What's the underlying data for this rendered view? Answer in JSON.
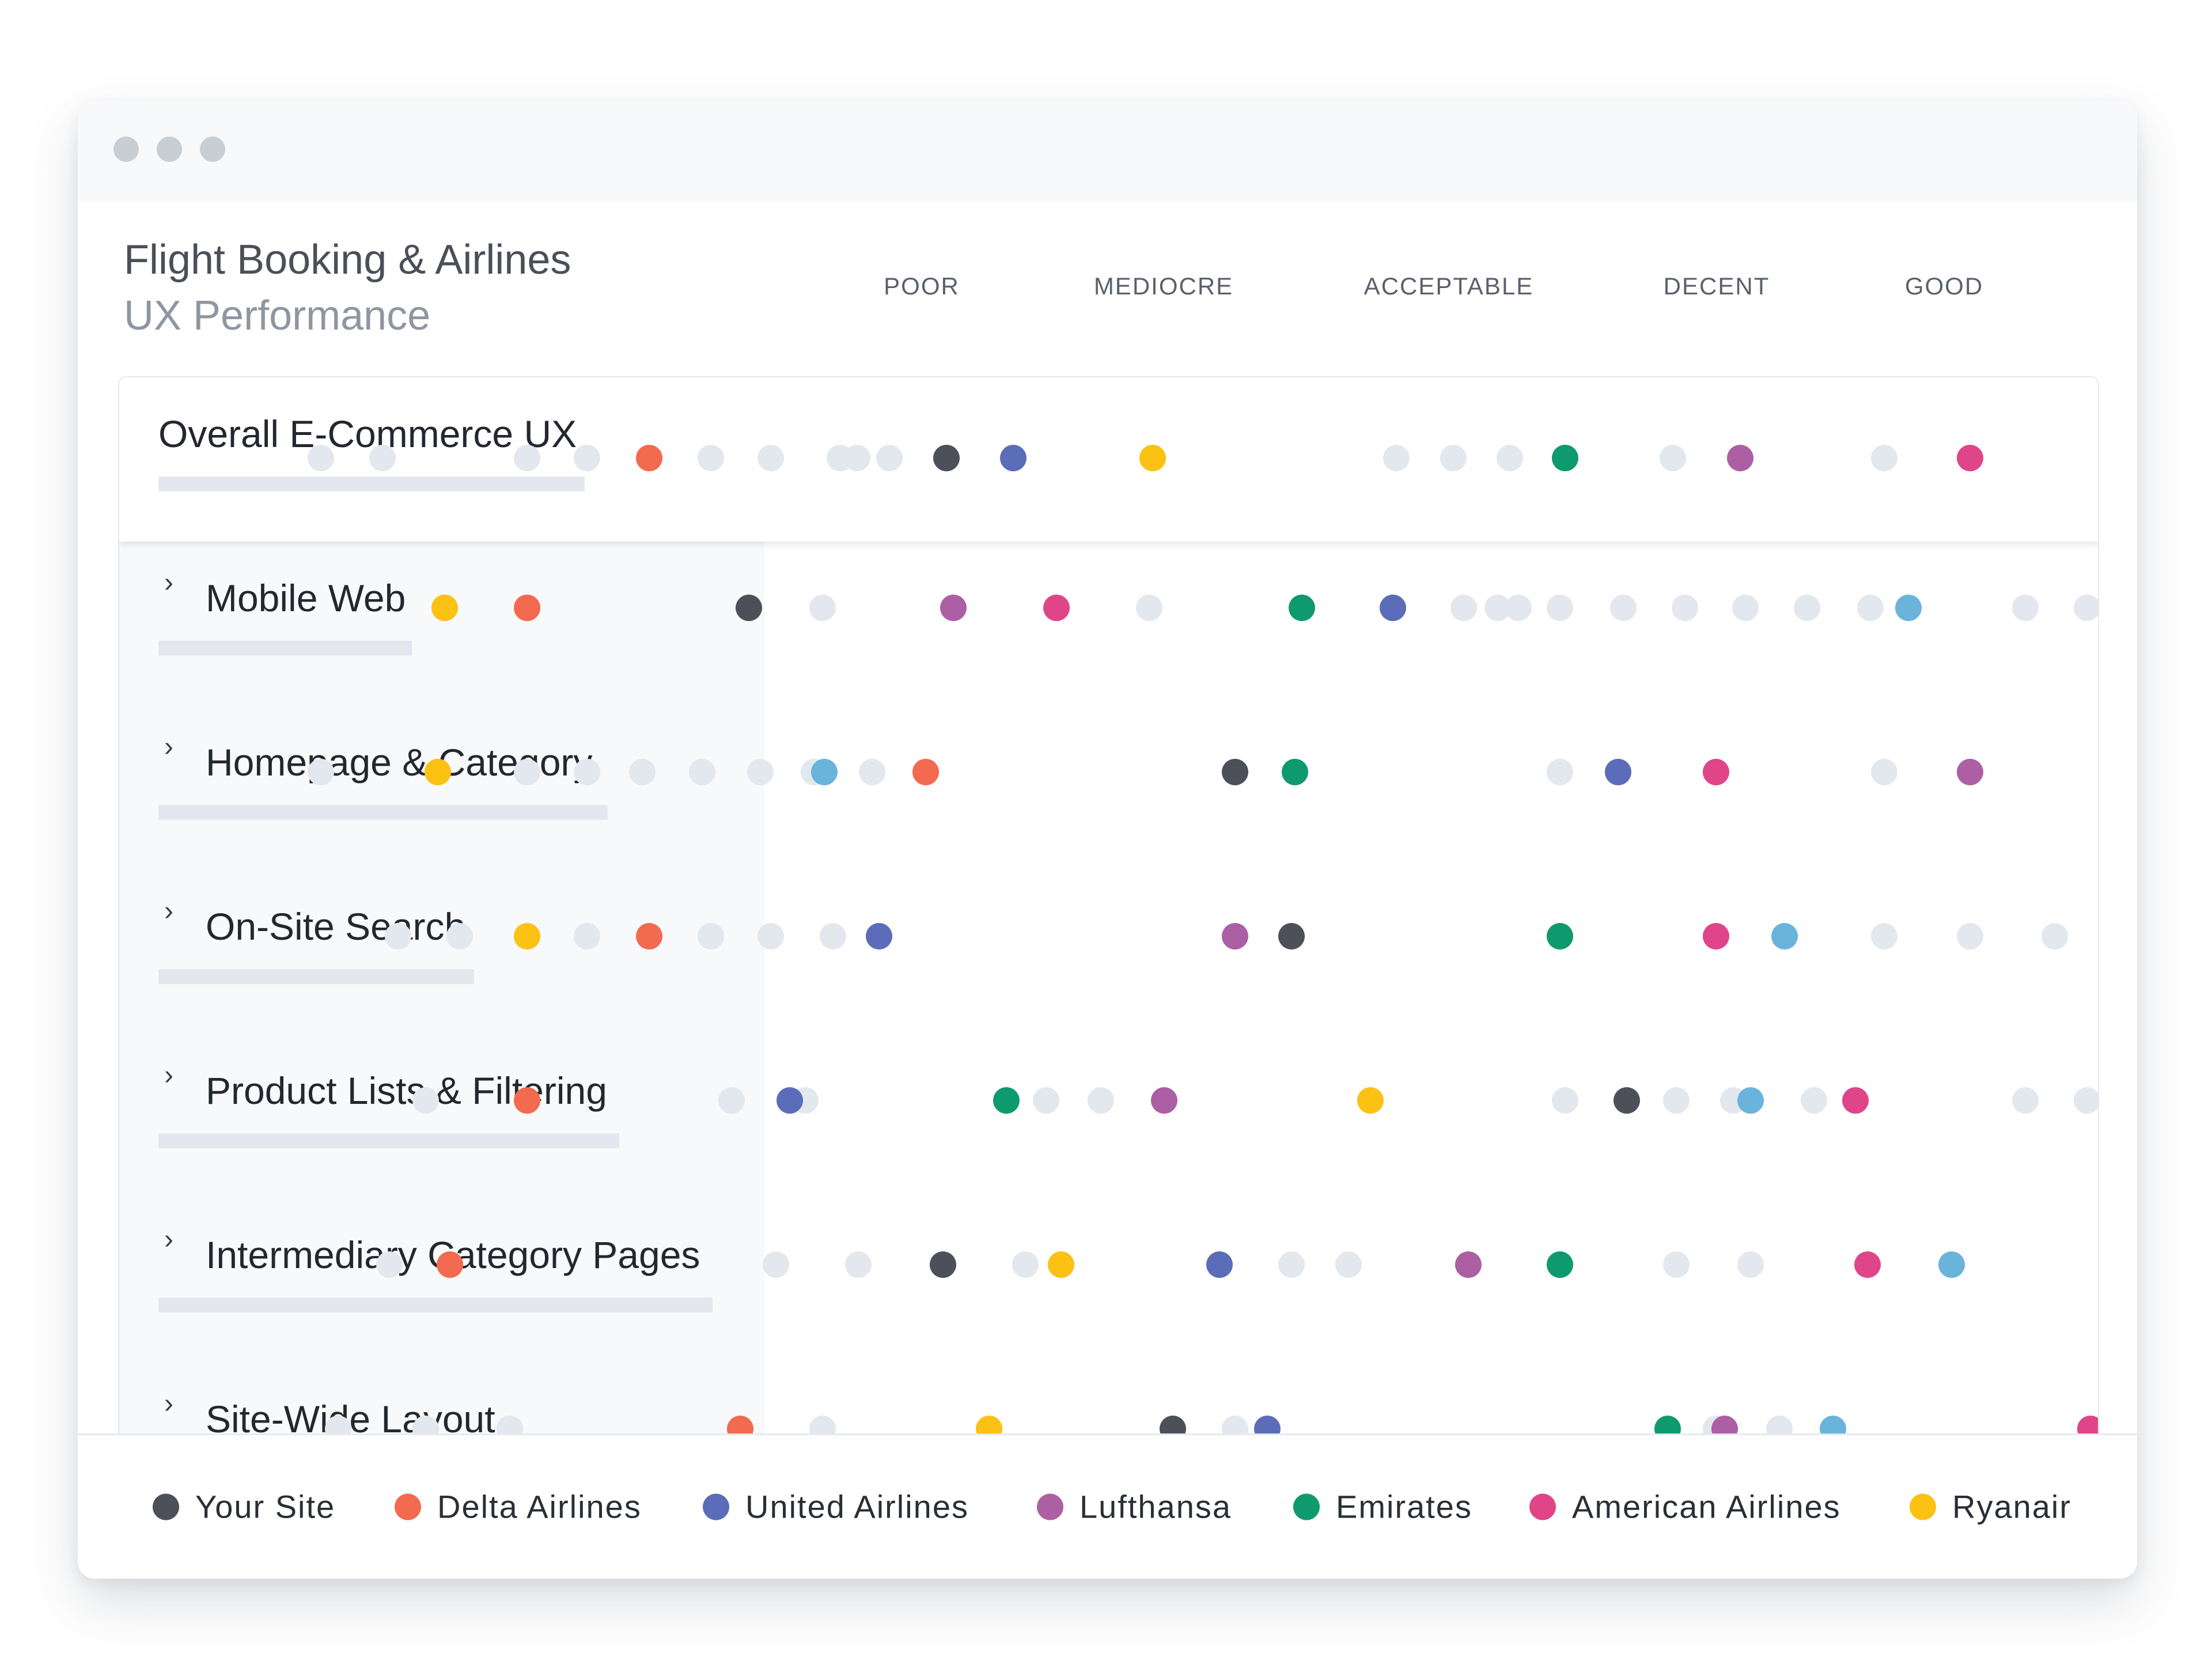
{
  "window": {
    "traffic_lights": [
      "close",
      "minimize",
      "maximize"
    ]
  },
  "header": {
    "title": "Flight Booking & Airlines",
    "subtitle": "UX Performance"
  },
  "chart_data": {
    "type": "scatter",
    "title": "Flight Booking & Airlines",
    "subtitle": "UX Performance",
    "scale": [
      "POOR",
      "MEDIOCRE",
      "ACCEPTABLE",
      "DECENT",
      "GOOD"
    ],
    "x_range": [
      0,
      100
    ],
    "grid": false,
    "legend_placement": "bottom",
    "series": [
      {
        "key": "your_site",
        "name": "Your Site",
        "color": "#4d5059"
      },
      {
        "key": "delta",
        "name": "Delta Airlines",
        "color": "#f26a4f"
      },
      {
        "key": "united",
        "name": "United Airlines",
        "color": "#5b6db8"
      },
      {
        "key": "lufthansa",
        "name": "Lufthansa",
        "color": "#ad5fa4"
      },
      {
        "key": "emirates",
        "name": "Emirates",
        "color": "#0f9a6e"
      },
      {
        "key": "american",
        "name": "American Airlines",
        "color": "#e0458a"
      },
      {
        "key": "ryanair",
        "name": "Ryanair",
        "color": "#fbc113"
      }
    ],
    "other_color": "#e3e7ee",
    "rows": [
      {
        "label": "Overall E-Commerce UX",
        "expandable": false,
        "others": [
          1.1,
          4.7,
          13.1,
          16.6,
          23.8,
          27.3,
          31.3,
          32.3,
          34.2,
          63.7,
          67.0,
          70.3,
          79.8,
          92.1
        ],
        "points": {
          "your_site": 37.5,
          "delta": 20.2,
          "united": 41.4,
          "ryanair": 49.5,
          "emirates": 73.5,
          "lufthansa": 83.7,
          "american": 97.1
        }
      },
      {
        "label": "Mobile Web",
        "expandable": true,
        "others": [
          30.3,
          49.3,
          67.6,
          69.6,
          70.8,
          73.2,
          76.9,
          80.5,
          84.0,
          87.6,
          91.3,
          100.3,
          103.9
        ],
        "points": {
          "ryanair": 8.3,
          "delta": 13.1,
          "your_site": 26.0,
          "lufthansa": 37.9,
          "american": 43.9,
          "emirates": 58.2,
          "united": 63.5,
          "_ms_blue": 93.5
        }
      },
      {
        "label": "Homepage & Category",
        "expandable": true,
        "others": [
          1.1,
          13.1,
          16.6,
          19.8,
          23.3,
          26.7,
          29.8,
          33.2,
          73.2,
          92.1
        ],
        "points": {
          "ryanair": 7.9,
          "_hp_blue": 30.4,
          "delta": 36.3,
          "your_site": 54.3,
          "emirates": 57.8,
          "united": 76.6,
          "american": 82.3,
          "lufthansa": 97.1
        }
      },
      {
        "label": "On-Site Search",
        "expandable": true,
        "others": [
          5.6,
          9.2,
          16.6,
          23.8,
          27.3,
          30.9,
          57.6,
          92.1,
          97.1,
          102.0
        ],
        "points": {
          "ryanair": 13.1,
          "delta": 20.2,
          "united": 33.6,
          "lufthansa": 54.3,
          "your_site": 57.6,
          "emirates": 73.2,
          "american": 82.3,
          "_os_blue": 86.3
        }
      },
      {
        "label": "Product Lists & Filtering",
        "expandable": true,
        "others": [
          7.2,
          25.0,
          29.3,
          43.3,
          46.5,
          73.5,
          80.0,
          83.3,
          88.0,
          100.3,
          103.9
        ],
        "points": {
          "delta": 13.1,
          "united": 28.4,
          "emirates": 41.0,
          "lufthansa": 50.2,
          "ryanair": 62.2,
          "your_site": 77.1,
          "_pl_blue": 84.3,
          "american": 90.4
        }
      },
      {
        "label": "Intermediary Category Pages",
        "expandable": true,
        "others": [
          5.1,
          27.6,
          32.4,
          42.1,
          57.6,
          60.9,
          80.0,
          84.3
        ],
        "points": {
          "delta": 8.6,
          "your_site": 37.3,
          "ryanair": 44.2,
          "united": 53.4,
          "lufthansa": 67.9,
          "emirates": 73.2,
          "american": 91.1,
          "_ic_blue": 96.0
        }
      },
      {
        "label": "Site-Wide Layout",
        "expandable": true,
        "others": [
          2.1,
          7.2,
          12.1,
          30.3,
          54.3,
          82.3,
          86.0
        ],
        "points": {
          "delta": 25.5,
          "ryanair": 40.0,
          "your_site": 50.7,
          "united": 56.2,
          "emirates": 79.5,
          "lufthansa": 82.8,
          "_sw_blue": 89.1,
          "american": 104.1
        }
      }
    ]
  },
  "legend": {
    "items": [
      "Your Site",
      "Delta Airlines",
      "United Airlines",
      "Lufthansa",
      "Emirates",
      "American Airlines",
      "Ryanair"
    ]
  }
}
